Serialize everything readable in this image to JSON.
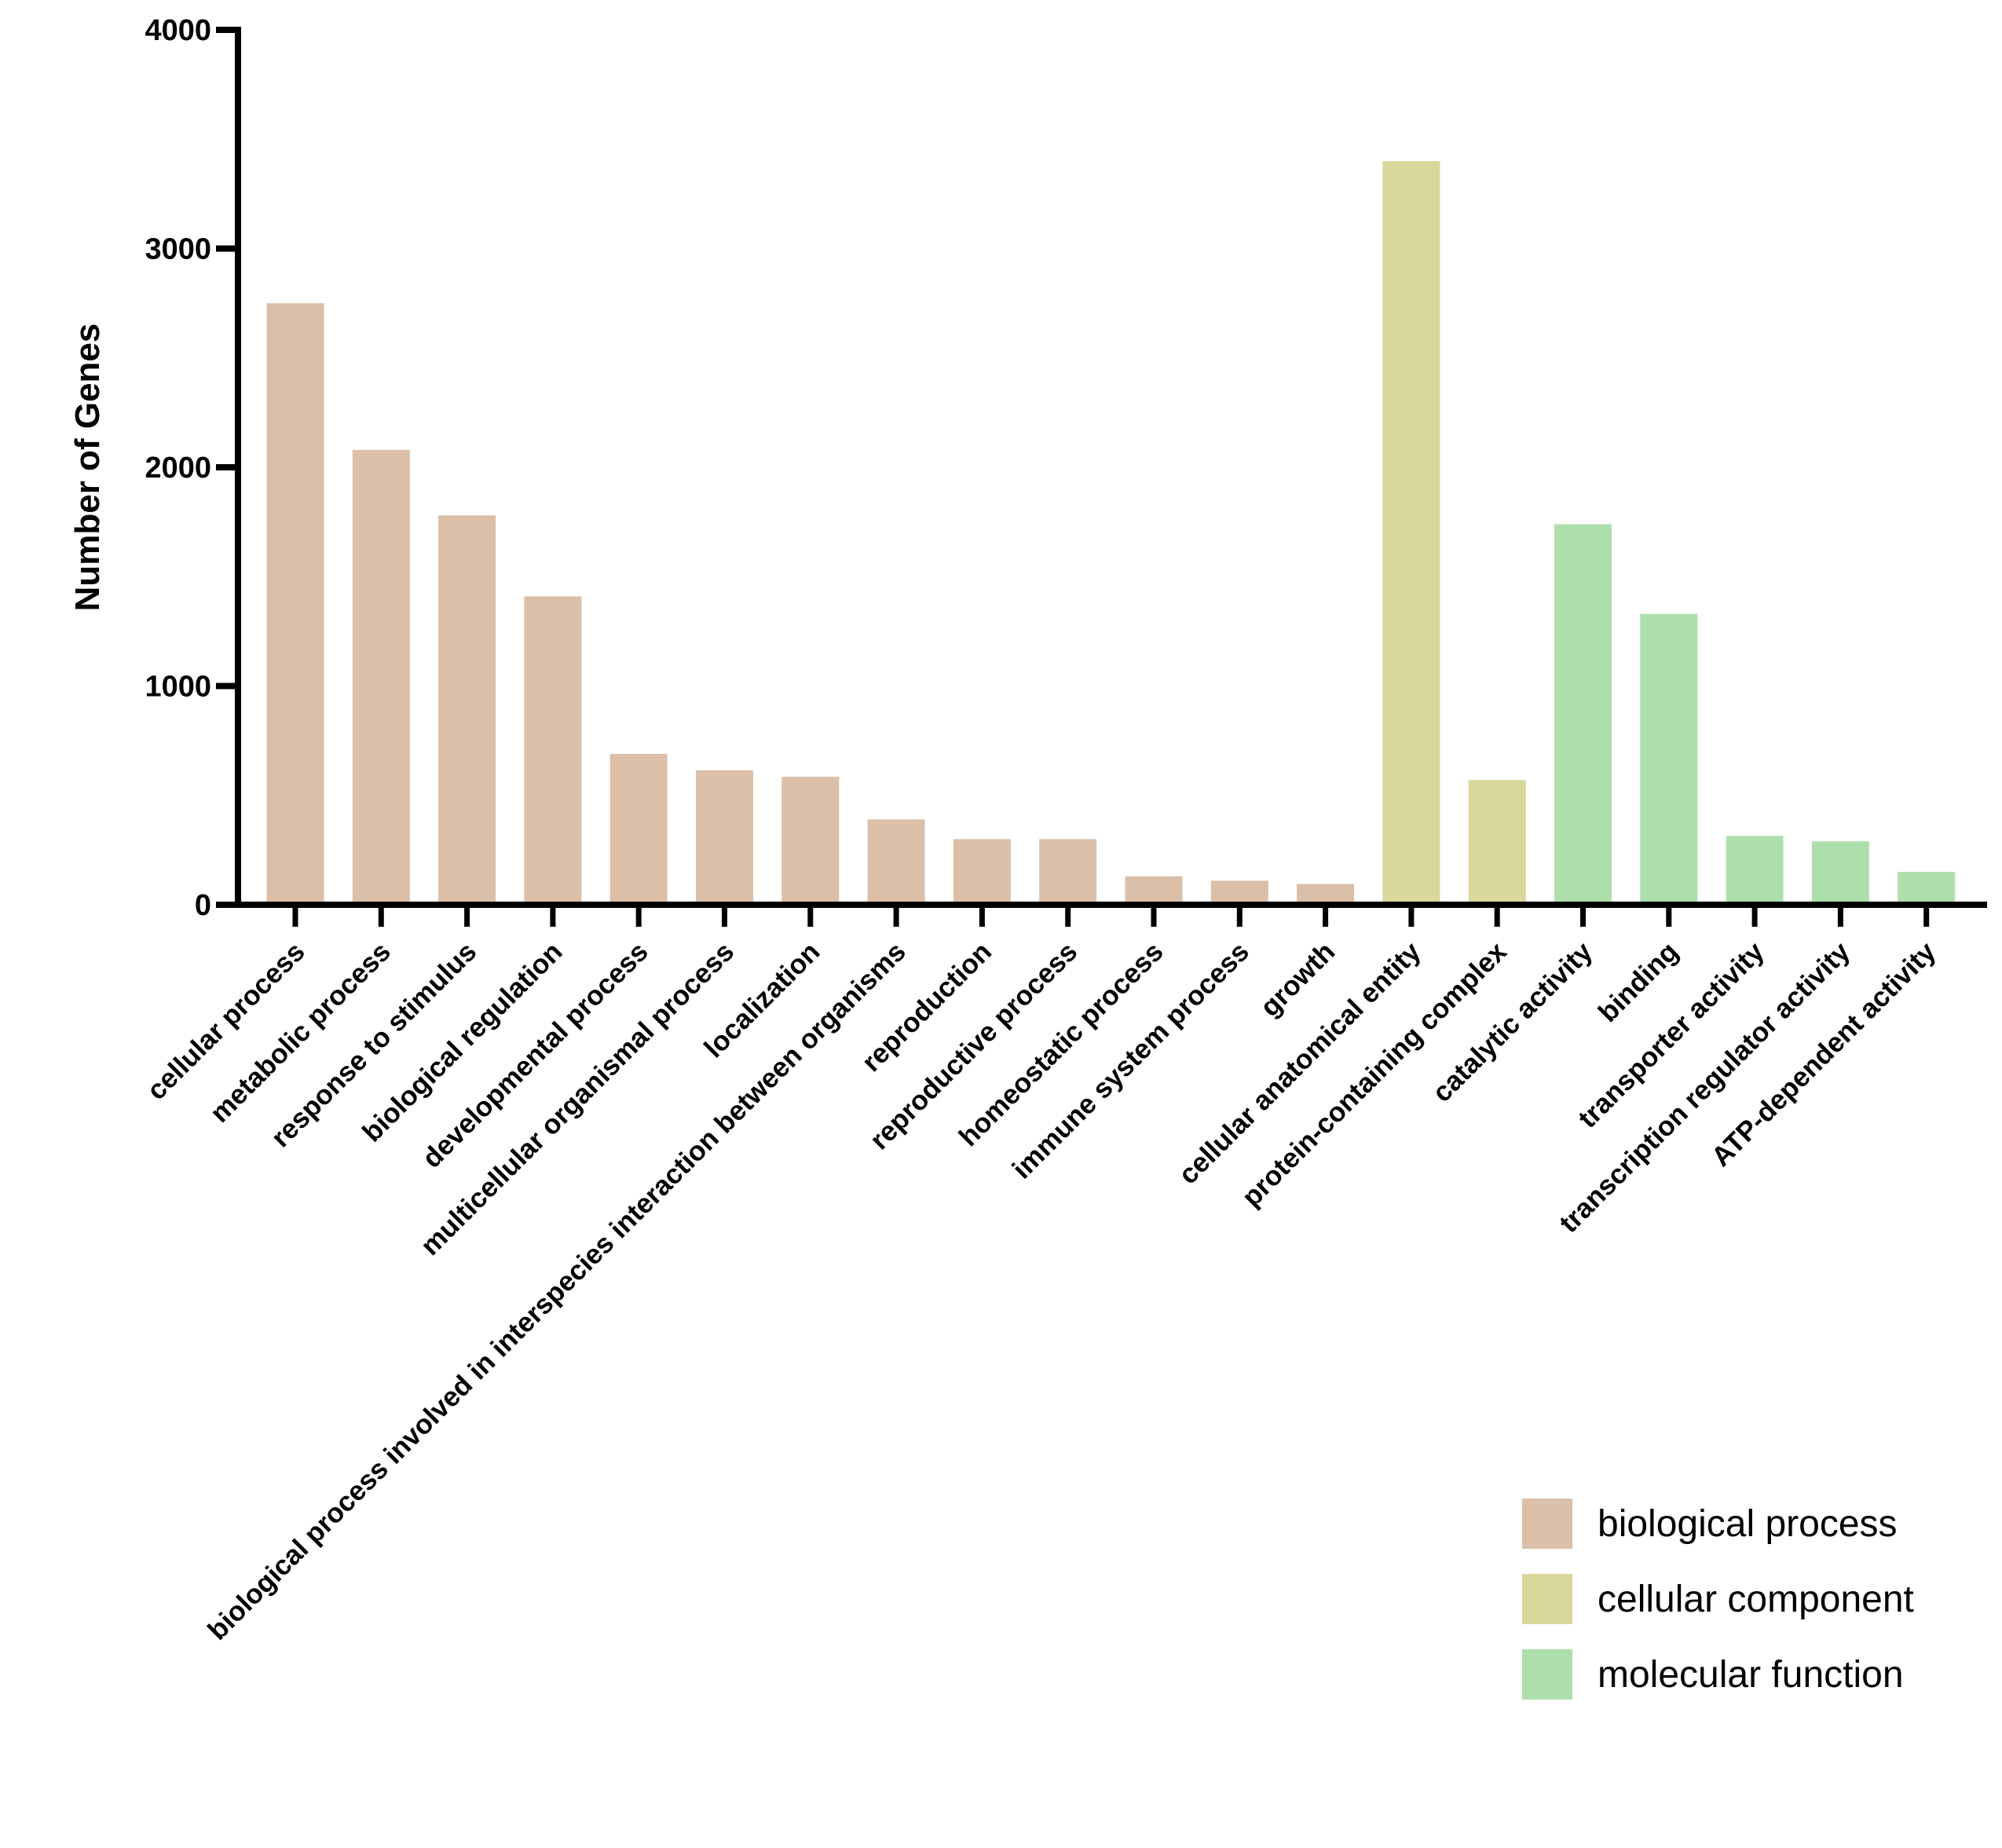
{
  "chart_data": {
    "type": "bar",
    "title": "",
    "xlabel": "",
    "ylabel": "Number of Genes",
    "ylim": [
      0,
      4000
    ],
    "yticks": [
      0,
      1000,
      2000,
      3000,
      4000
    ],
    "grid": false,
    "legend_position": "bottom-right",
    "categories": [
      "cellular process",
      "metabolic process",
      "response to stimulus",
      "biological regulation",
      "developmental process",
      "multicellular organismal process",
      "localization",
      "biological process involved in interspecies interaction between organisms",
      "reproduction",
      "reproductive process",
      "homeostatic process",
      "immune system process",
      "growth",
      "cellular anatomical entity",
      "protein-containing complex",
      "catalytic activity",
      "binding",
      "transporter activity",
      "transcription regulator activity",
      "ATP-dependent activity"
    ],
    "values": [
      2750,
      2080,
      1780,
      1410,
      690,
      615,
      585,
      390,
      300,
      300,
      130,
      110,
      95,
      3400,
      570,
      1740,
      1330,
      315,
      290,
      150
    ],
    "groups": [
      0,
      0,
      0,
      0,
      0,
      0,
      0,
      0,
      0,
      0,
      0,
      0,
      0,
      1,
      1,
      2,
      2,
      2,
      2,
      2
    ],
    "series": [
      {
        "name": "biological process",
        "color": "#dbbfa9"
      },
      {
        "name": "cellular component",
        "color": "#d9d79a"
      },
      {
        "name": "molecular function",
        "color": "#addfad"
      }
    ]
  }
}
